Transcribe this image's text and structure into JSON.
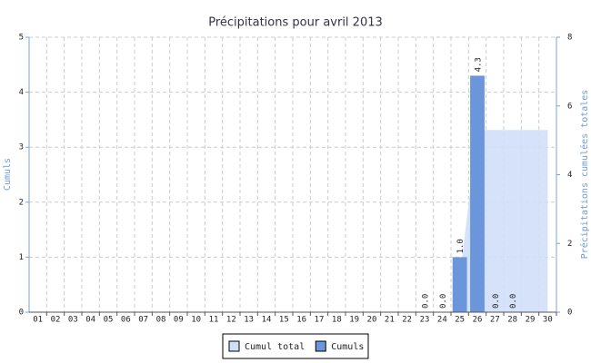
{
  "chart_data": {
    "type": "bar",
    "title": "Précipitations pour avril 2013",
    "y_label": "Cumuls",
    "y2_label": "Précipitations cumulées totales",
    "categories": [
      "01",
      "02",
      "03",
      "04",
      "05",
      "06",
      "07",
      "08",
      "09",
      "10",
      "11",
      "12",
      "13",
      "14",
      "15",
      "16",
      "17",
      "18",
      "19",
      "20",
      "21",
      "22",
      "23",
      "24",
      "25",
      "26",
      "27",
      "28",
      "29",
      "30"
    ],
    "series": [
      {
        "name": "Cumul total",
        "type": "area",
        "axis": "y2",
        "color": "#d0dff8",
        "values": [
          null,
          null,
          null,
          null,
          null,
          null,
          null,
          null,
          null,
          null,
          null,
          null,
          null,
          null,
          null,
          null,
          null,
          null,
          null,
          null,
          null,
          null,
          null,
          null,
          1.0,
          5.3,
          5.3,
          5.3,
          5.3,
          5.3
        ]
      },
      {
        "name": "Cumuls",
        "type": "bar",
        "color": "#6b96db",
        "values": [
          null,
          null,
          null,
          null,
          null,
          null,
          null,
          null,
          null,
          null,
          null,
          null,
          null,
          null,
          null,
          null,
          null,
          null,
          null,
          null,
          null,
          null,
          0,
          0,
          1.0,
          4.3,
          0,
          0,
          null,
          null
        ],
        "value_labels": [
          null,
          null,
          null,
          null,
          null,
          null,
          null,
          null,
          null,
          null,
          null,
          null,
          null,
          null,
          null,
          null,
          null,
          null,
          null,
          null,
          null,
          null,
          "0.0",
          "0.0",
          "1.0",
          "4.3",
          "0.0",
          "0.0",
          null,
          null
        ]
      }
    ],
    "ylim": [
      0,
      5
    ],
    "yticks": [
      0,
      1,
      2,
      3,
      4,
      5
    ],
    "y2lim": [
      0,
      8
    ],
    "y2ticks": [
      0,
      2,
      4,
      6,
      8
    ],
    "grid": true,
    "legend": "bottom"
  }
}
